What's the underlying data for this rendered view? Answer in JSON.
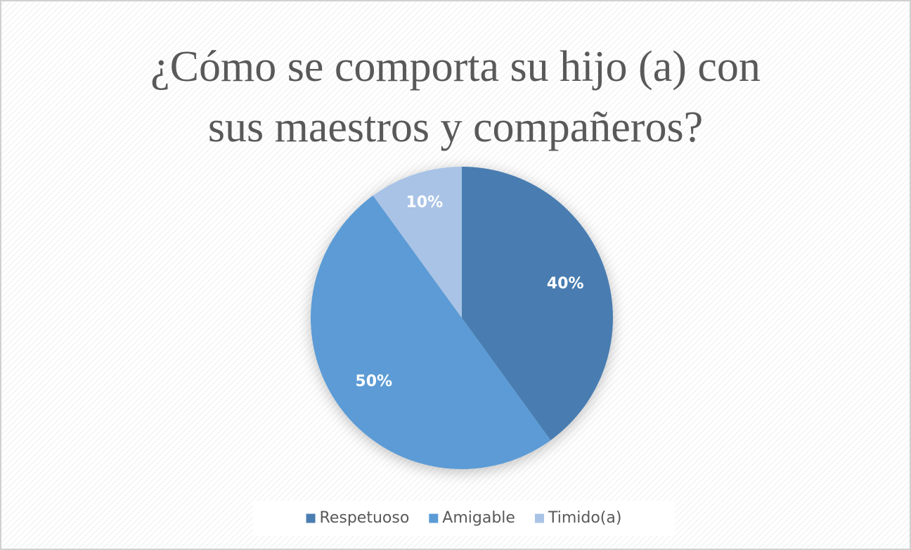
{
  "chart_data": {
    "type": "pie",
    "title": "¿Cómo se comporta su hijo (a) con\nsus maestros y compañeros?",
    "categories": [
      "Respetuoso",
      "Amigable",
      "Timido(a)"
    ],
    "values": [
      40,
      50,
      10
    ],
    "value_labels": [
      "40%",
      "50%",
      "10%"
    ],
    "colors": [
      "#4a7db1",
      "#5b9bd5",
      "#a9c3e6"
    ],
    "legend": "bottom"
  }
}
